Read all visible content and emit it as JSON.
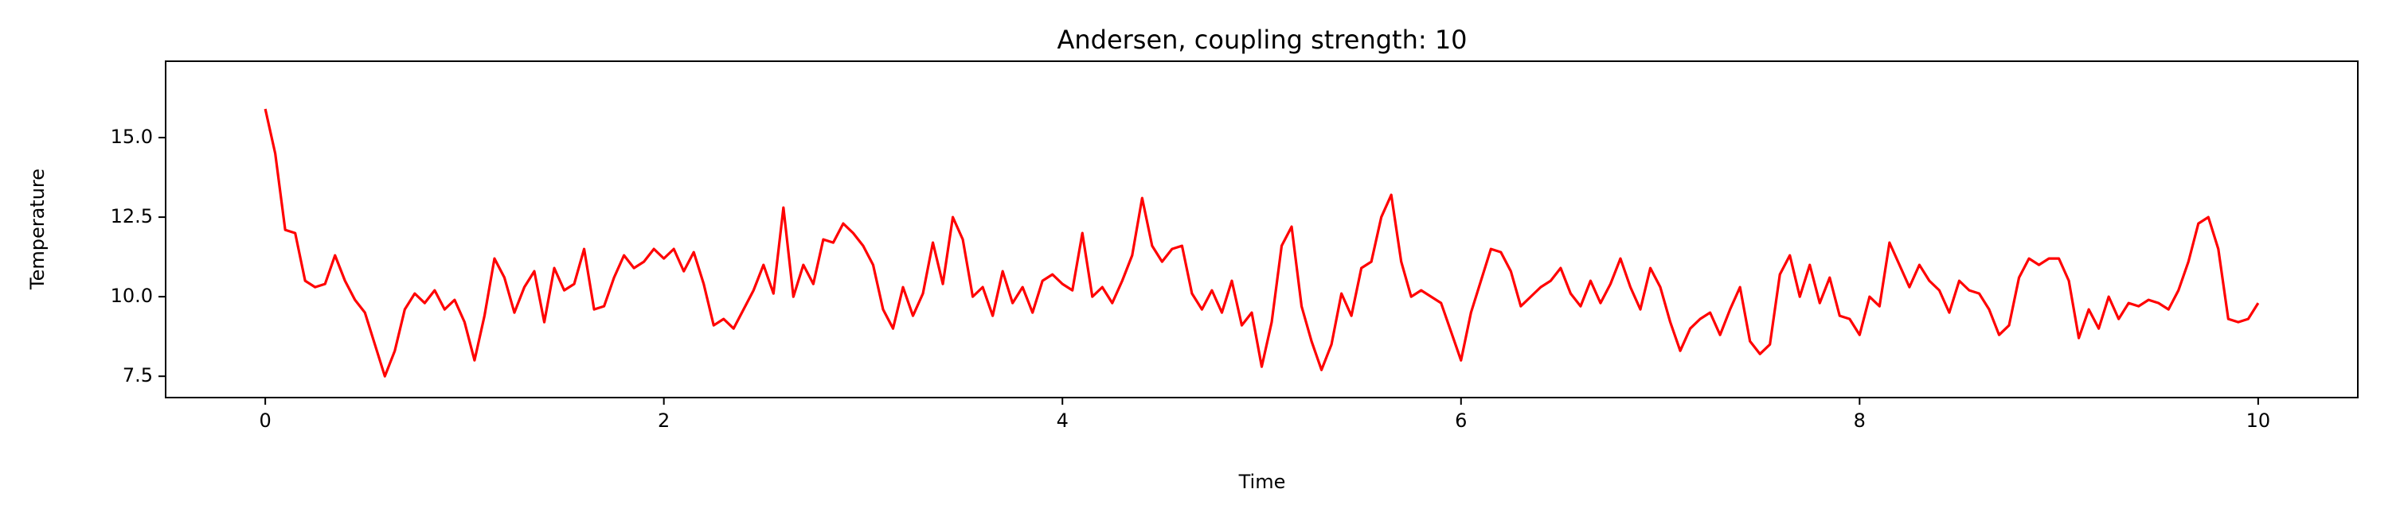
{
  "chart_data": {
    "type": "line",
    "title": "Andersen, coupling strength: 10",
    "x_label": "Time",
    "y_label": "Temperature",
    "xlim": [
      -0.5,
      10.5
    ],
    "ylim": [
      6.83,
      17.4
    ],
    "xticks": [
      0,
      2,
      4,
      6,
      8,
      10
    ],
    "yticks": [
      7.5,
      {
        "value": 10,
        "label": "10.0"
      },
      12.5,
      {
        "value": 15,
        "label": "15.0"
      }
    ],
    "grid": false,
    "x": [
      0,
      0.05,
      0.1,
      0.15,
      0.2,
      0.25,
      0.3,
      0.35,
      0.4,
      0.45,
      0.5,
      0.55,
      0.6,
      0.65,
      0.7,
      0.75,
      0.8,
      0.85,
      0.9,
      0.95,
      1,
      1.05,
      1.1,
      1.15,
      1.2,
      1.25,
      1.3,
      1.35,
      1.4,
      1.45,
      1.5,
      1.55,
      1.6,
      1.65,
      1.7,
      1.75,
      1.8,
      1.85,
      1.9,
      1.95,
      2,
      2.05,
      2.1,
      2.15,
      2.2,
      2.25,
      2.3,
      2.35,
      2.4,
      2.45,
      2.5,
      2.55,
      2.6,
      2.65,
      2.7,
      2.75,
      2.8,
      2.85,
      2.9,
      2.95,
      3,
      3.05,
      3.1,
      3.15,
      3.2,
      3.25,
      3.3,
      3.35,
      3.4,
      3.45,
      3.5,
      3.55,
      3.6,
      3.65,
      3.7,
      3.75,
      3.8,
      3.85,
      3.9,
      3.95,
      4,
      4.05,
      4.1,
      4.15,
      4.2,
      4.25,
      4.3,
      4.35,
      4.4,
      4.45,
      4.5,
      4.55,
      4.6,
      4.65,
      4.7,
      4.75,
      4.8,
      4.85,
      4.9,
      4.95,
      5,
      5.05,
      5.1,
      5.15,
      5.2,
      5.25,
      5.3,
      5.35,
      5.4,
      5.45,
      5.5,
      5.55,
      5.6,
      5.65,
      5.7,
      5.75,
      5.8,
      5.85,
      5.9,
      5.95,
      6,
      6.05,
      6.1,
      6.15,
      6.2,
      6.25,
      6.3,
      6.35,
      6.4,
      6.45,
      6.5,
      6.55,
      6.6,
      6.65,
      6.7,
      6.75,
      6.8,
      6.85,
      6.9,
      6.95,
      7,
      7.05,
      7.1,
      7.15,
      7.2,
      7.25,
      7.3,
      7.35,
      7.4,
      7.45,
      7.5,
      7.55,
      7.6,
      7.65,
      7.7,
      7.75,
      7.8,
      7.85,
      7.9,
      7.95,
      8,
      8.05,
      8.1,
      8.15,
      8.2,
      8.25,
      8.3,
      8.35,
      8.4,
      8.45,
      8.5,
      8.55,
      8.6,
      8.65,
      8.7,
      8.75,
      8.8,
      8.85,
      8.9,
      8.95,
      9,
      9.05,
      9.1,
      9.15,
      9.2,
      9.25,
      9.3,
      9.35,
      9.4,
      9.45,
      9.5,
      9.55,
      9.6,
      9.65,
      9.7,
      9.75,
      9.8,
      9.85,
      9.9,
      9.95,
      10
    ],
    "series": [
      {
        "color": "#ff0000",
        "values": [
          15.9,
          14.5,
          12.1,
          12.0,
          10.5,
          10.3,
          10.4,
          11.3,
          10.5,
          9.9,
          9.5,
          8.5,
          7.5,
          8.3,
          9.6,
          10.1,
          9.8,
          10.2,
          9.6,
          9.9,
          9.2,
          8.0,
          9.4,
          11.2,
          10.6,
          9.5,
          10.3,
          10.8,
          9.2,
          10.9,
          10.2,
          10.4,
          11.5,
          9.6,
          9.7,
          10.6,
          11.3,
          10.9,
          11.1,
          11.5,
          11.2,
          11.5,
          10.8,
          11.4,
          10.4,
          9.1,
          9.3,
          9.0,
          9.6,
          10.2,
          11.0,
          10.1,
          12.8,
          10.0,
          11.0,
          10.4,
          11.8,
          11.7,
          12.3,
          12.0,
          11.6,
          11.0,
          9.6,
          9.0,
          10.3,
          9.4,
          10.1,
          11.7,
          10.4,
          12.5,
          11.8,
          10.0,
          10.3,
          9.4,
          10.8,
          9.8,
          10.3,
          9.5,
          10.5,
          10.7,
          10.4,
          10.2,
          12.0,
          10.0,
          10.3,
          9.8,
          10.5,
          11.3,
          13.1,
          11.6,
          11.1,
          11.5,
          11.6,
          10.1,
          9.6,
          10.2,
          9.5,
          10.5,
          9.1,
          9.5,
          7.8,
          9.2,
          11.6,
          12.2,
          9.7,
          8.6,
          7.7,
          8.5,
          10.1,
          9.4,
          10.9,
          11.1,
          12.5,
          13.2,
          11.1,
          10.0,
          10.2,
          10.0,
          9.8,
          8.9,
          8.0,
          9.5,
          10.5,
          11.5,
          11.4,
          10.8,
          9.7,
          10.0,
          10.3,
          10.5,
          10.9,
          10.1,
          9.7,
          10.5,
          9.8,
          10.4,
          11.2,
          10.3,
          9.6,
          10.9,
          10.3,
          9.2,
          8.3,
          9.0,
          9.3,
          9.5,
          8.8,
          9.6,
          10.3,
          8.6,
          8.2,
          8.5,
          10.7,
          11.3,
          10.0,
          11.0,
          9.8,
          10.6,
          9.4,
          9.3,
          8.8,
          10.0,
          9.7,
          11.7,
          11.0,
          10.3,
          11.0,
          10.5,
          10.2,
          9.5,
          10.5,
          10.2,
          10.1,
          9.6,
          8.8,
          9.1,
          10.6,
          11.2,
          11.0,
          11.2,
          11.2,
          10.5,
          8.7,
          9.6,
          9.0,
          10.0,
          9.3,
          9.8,
          9.7,
          9.9,
          9.8,
          9.6,
          10.2,
          11.1,
          12.3,
          12.5,
          11.5,
          9.3,
          9.2,
          9.3,
          9.8
        ]
      }
    ]
  }
}
